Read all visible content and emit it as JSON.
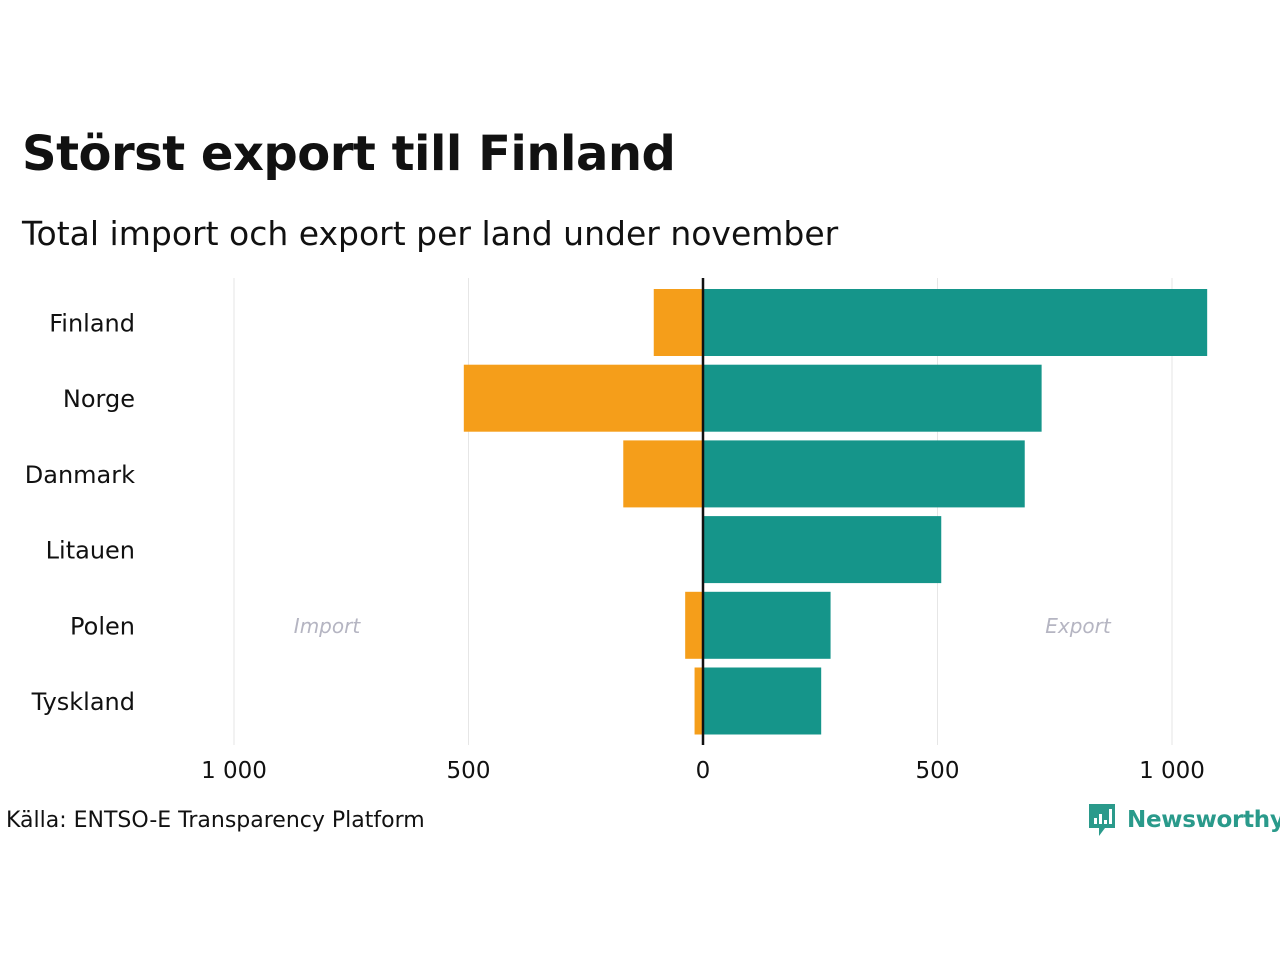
{
  "header": {
    "title": "Störst export till Finland",
    "subtitle": "Total import och export per land under november"
  },
  "chart_data": {
    "type": "bar",
    "orientation": "horizontal-diverging",
    "categories": [
      "Finland",
      "Norge",
      "Danmark",
      "Litauen",
      "Polen",
      "Tyskland"
    ],
    "series": [
      {
        "name": "Import",
        "color": "#f59e1a",
        "values": [
          105,
          510,
          170,
          0,
          38,
          18
        ]
      },
      {
        "name": "Export",
        "color": "#15958a",
        "values": [
          1075,
          722,
          686,
          508,
          272,
          252
        ]
      }
    ],
    "xlim": [
      -1000,
      1000
    ],
    "x_ticks": [
      -1000,
      -500,
      0,
      500,
      1000
    ],
    "x_tick_labels": [
      "1 000",
      "500",
      "0",
      "500",
      "1 000"
    ],
    "annotations": {
      "import": "Import",
      "export": "Export"
    },
    "grid": true
  },
  "footer": {
    "source": "Källa: ENTSO-E Transparency Platform",
    "brand": "Newsworthy"
  },
  "colors": {
    "import": "#f59e1a",
    "export": "#15958a",
    "brand": "#2a9a8b"
  }
}
